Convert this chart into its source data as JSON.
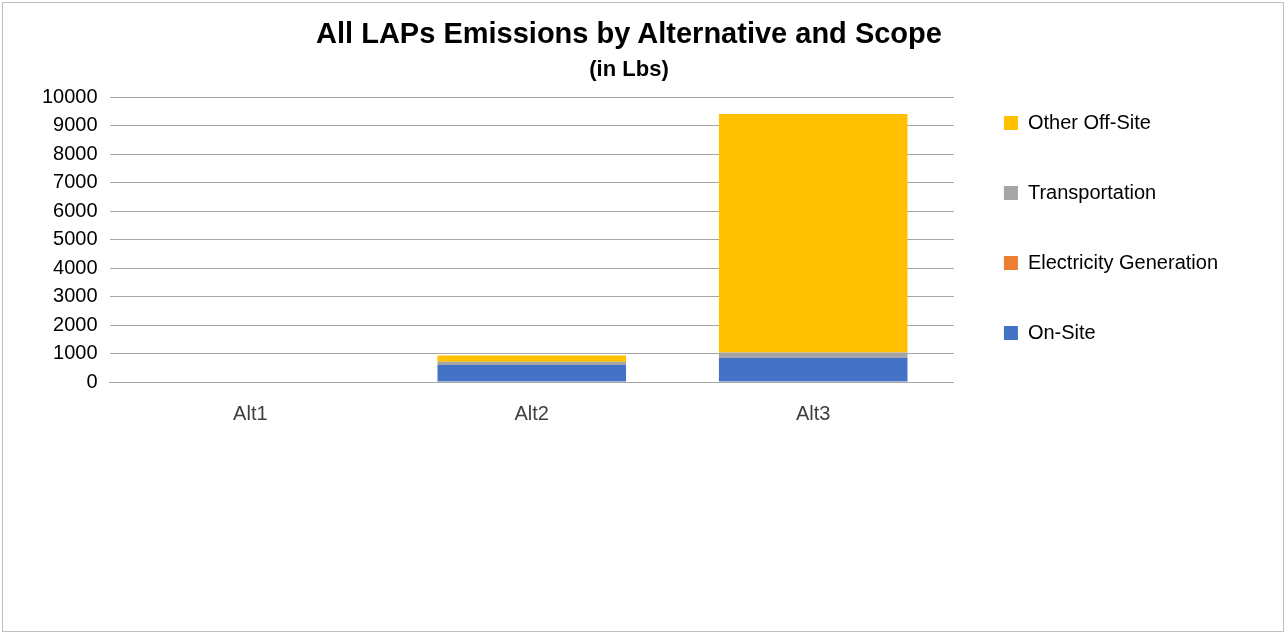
{
  "chart_data": {
    "type": "bar",
    "title": "All LAPs Emissions by Alternative and Scope",
    "subtitle": "(in Lbs)",
    "categories": [
      "Alt1",
      "Alt2",
      "Alt3"
    ],
    "series": [
      {
        "name": "On-Site",
        "color": "#4472c4",
        "values": [
          0,
          600,
          850
        ]
      },
      {
        "name": "Electricity Generation",
        "color": "#ed7d31",
        "values": [
          0,
          0,
          0
        ]
      },
      {
        "name": "Transportation",
        "color": "#a5a5a5",
        "values": [
          0,
          110,
          190
        ]
      },
      {
        "name": "Other Off-Site",
        "color": "#ffc000",
        "values": [
          0,
          220,
          8370
        ]
      }
    ],
    "stacked": true,
    "ylim": [
      0,
      10000
    ],
    "yticks": [
      0,
      1000,
      2000,
      3000,
      4000,
      5000,
      6000,
      7000,
      8000,
      9000,
      10000
    ],
    "grid": "y",
    "legend": "right"
  }
}
